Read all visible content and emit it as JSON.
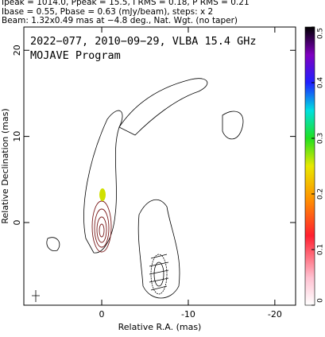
{
  "chart_data": {
    "type": "contour",
    "header": [
      "Ipeak = 1014.0, Ppeak = 15.5, I RMS = 0.18, P RMS = 0.21",
      "Ibase = 0.55, Pbase = 0.63 (mJy/beam), steps: x 2",
      "Beam: 1.32x0.49 mas at −4.8 deg., Nat. Wgt. (no taper)"
    ],
    "title": "2022−077, 2010−09−29, VLBA 15.4 GHz",
    "subtitle": "MOJAVE Program",
    "xlabel": "Relative R.A. (mas)",
    "ylabel": "Relative Declination (mas)",
    "xlim": [
      9,
      -22.4
    ],
    "xticks": [
      0,
      -10,
      -20
    ],
    "ylim": [
      -9.6,
      22.7
    ],
    "yticks": [
      0,
      10,
      20
    ],
    "colorbar": {
      "lim": [
        0,
        0.5
      ],
      "ticks": [
        0,
        0.1,
        0.2,
        0.3,
        0.4,
        0.5
      ]
    }
  }
}
